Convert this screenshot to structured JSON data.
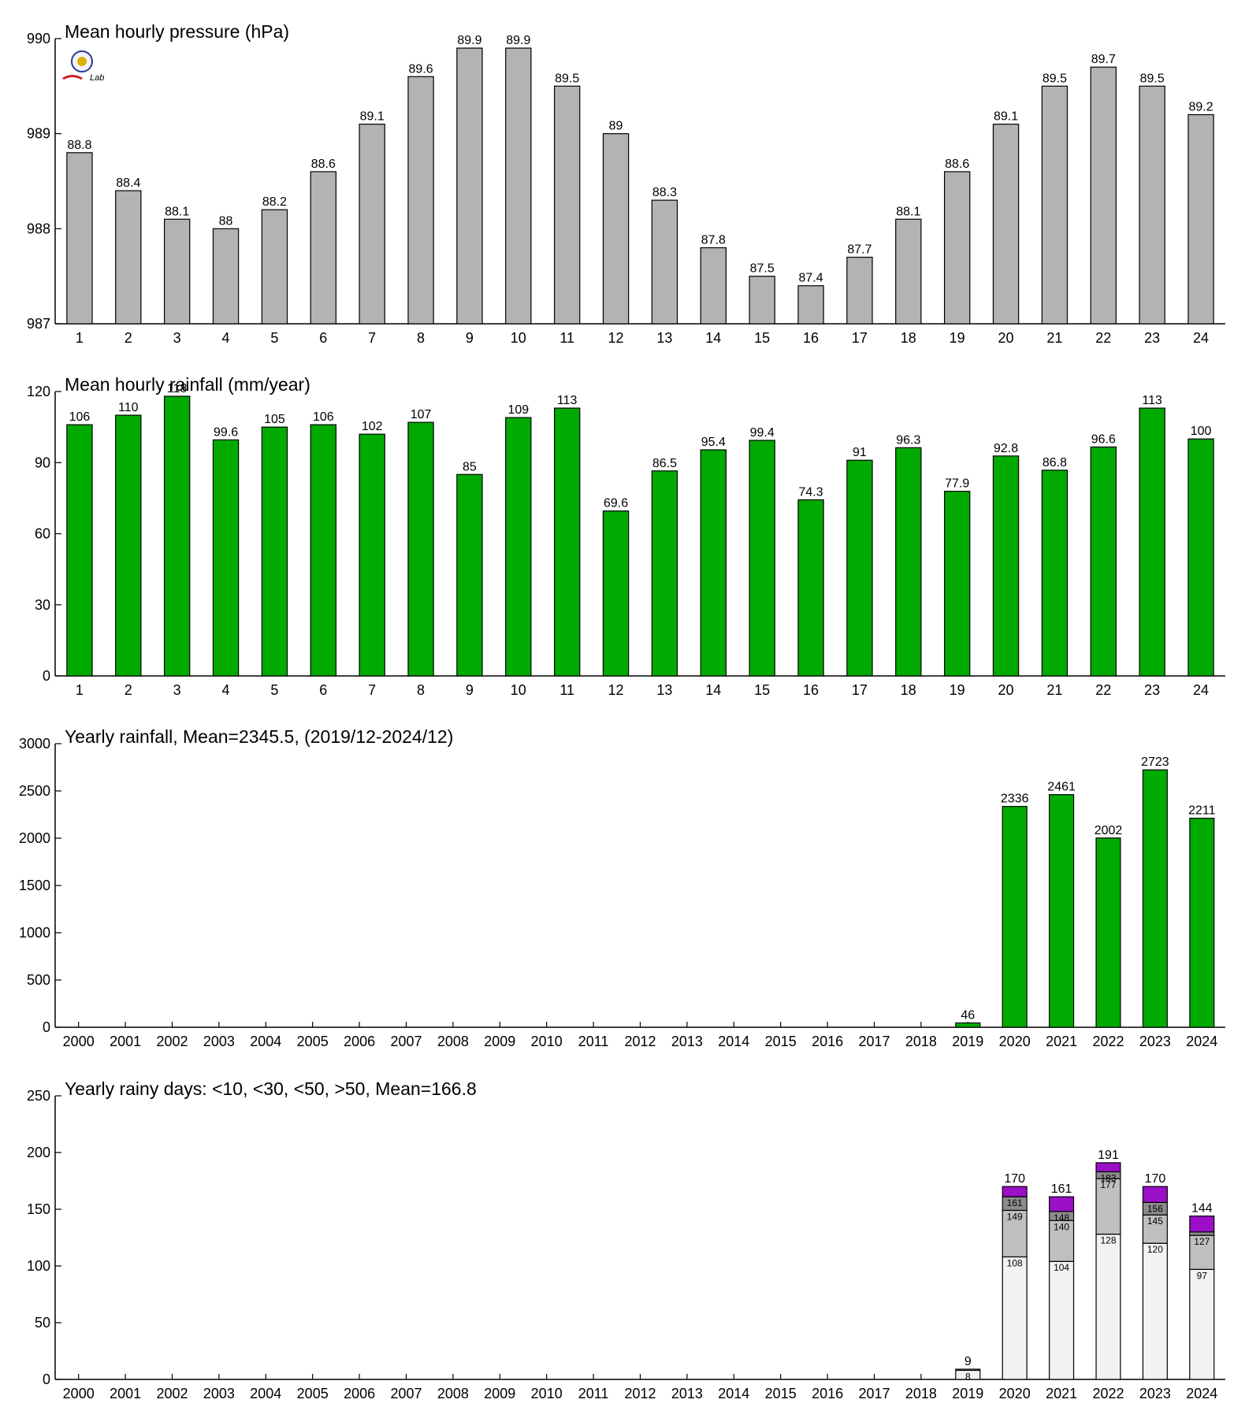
{
  "colors": {
    "pressure_bar": "#b3b3b3",
    "rain_bar": "#00aa00",
    "days_lt10": "#f2f2f2",
    "days_lt30": "#bfbfbf",
    "days_lt50": "#8c8c8c",
    "days_gt50": "#9b0fc6",
    "axis": "#000000"
  },
  "logo": {
    "icon": "station-seal-logo",
    "text": "Lab"
  },
  "chart_data": [
    {
      "type": "bar",
      "title": "Mean hourly pressure (hPa)",
      "categories": [
        "1",
        "2",
        "3",
        "4",
        "5",
        "6",
        "7",
        "8",
        "9",
        "10",
        "11",
        "12",
        "13",
        "14",
        "15",
        "16",
        "17",
        "18",
        "19",
        "20",
        "21",
        "22",
        "23",
        "24"
      ],
      "values": [
        988.8,
        988.4,
        988.1,
        988,
        988.2,
        988.6,
        989.1,
        989.6,
        989.9,
        989.9,
        989.5,
        989,
        988.3,
        987.8,
        987.5,
        987.4,
        987.7,
        988.1,
        988.6,
        989.1,
        989.5,
        989.7,
        989.5,
        989.2
      ],
      "labels": [
        "88.8",
        "88.4",
        "88.1",
        "88",
        "88.2",
        "88.6",
        "89.1",
        "89.6",
        "89.9",
        "89.9",
        "89.5",
        "89",
        "88.3",
        "87.8",
        "87.5",
        "87.4",
        "87.7",
        "88.1",
        "88.6",
        "89.1",
        "89.5",
        "89.7",
        "89.5",
        "89.2"
      ],
      "ylim": [
        987,
        990
      ],
      "yticks": [
        987,
        988,
        989,
        990
      ],
      "grid": false,
      "color": "#b3b3b3"
    },
    {
      "type": "bar",
      "title": "Mean hourly rainfall (mm/year)",
      "categories": [
        "1",
        "2",
        "3",
        "4",
        "5",
        "6",
        "7",
        "8",
        "9",
        "10",
        "11",
        "12",
        "13",
        "14",
        "15",
        "16",
        "17",
        "18",
        "19",
        "20",
        "21",
        "22",
        "23",
        "24"
      ],
      "values": [
        106,
        110,
        118,
        99.6,
        105,
        106,
        102,
        107,
        85,
        109,
        113,
        69.6,
        86.5,
        95.4,
        99.4,
        74.3,
        91,
        96.3,
        77.9,
        92.8,
        86.8,
        96.6,
        113,
        100
      ],
      "labels": [
        "106",
        "110",
        "118",
        "99.6",
        "105",
        "106",
        "102",
        "107",
        "85",
        "109",
        "113",
        "69.6",
        "86.5",
        "95.4",
        "99.4",
        "74.3",
        "91",
        "96.3",
        "77.9",
        "92.8",
        "86.8",
        "96.6",
        "113",
        "100"
      ],
      "ylim": [
        0,
        120
      ],
      "yticks": [
        0,
        30,
        60,
        90,
        120
      ],
      "grid": false,
      "color": "#00aa00"
    },
    {
      "type": "bar",
      "title": "Yearly rainfall, Mean=2345.5, (2019/12-2024/12)",
      "categories": [
        "2000",
        "2001",
        "2002",
        "2003",
        "2004",
        "2005",
        "2006",
        "2007",
        "2008",
        "2009",
        "2010",
        "2011",
        "2012",
        "2013",
        "2014",
        "2015",
        "2016",
        "2017",
        "2018",
        "2019",
        "2020",
        "2021",
        "2022",
        "2023",
        "2024"
      ],
      "values": [
        null,
        null,
        null,
        null,
        null,
        null,
        null,
        null,
        null,
        null,
        null,
        null,
        null,
        null,
        null,
        null,
        null,
        null,
        null,
        46,
        2336,
        2461,
        2002,
        2723,
        2211
      ],
      "labels": [
        null,
        null,
        null,
        null,
        null,
        null,
        null,
        null,
        null,
        null,
        null,
        null,
        null,
        null,
        null,
        null,
        null,
        null,
        null,
        "46",
        "2336",
        "2461",
        "2002",
        "2723",
        "2211"
      ],
      "ylim": [
        0,
        3000
      ],
      "yticks": [
        0,
        500,
        1000,
        1500,
        2000,
        2500,
        3000
      ],
      "grid": false,
      "color": "#00aa00"
    },
    {
      "type": "bar",
      "stacked": true,
      "title": "Yearly rainy days: <10, <30, <50, >50, Mean=166.8",
      "categories": [
        "2000",
        "2001",
        "2002",
        "2003",
        "2004",
        "2005",
        "2006",
        "2007",
        "2008",
        "2009",
        "2010",
        "2011",
        "2012",
        "2013",
        "2014",
        "2015",
        "2016",
        "2017",
        "2018",
        "2019",
        "2020",
        "2021",
        "2022",
        "2023",
        "2024"
      ],
      "cumulative": {
        "lt10": [
          null,
          null,
          null,
          null,
          null,
          null,
          null,
          null,
          null,
          null,
          null,
          null,
          null,
          null,
          null,
          null,
          null,
          null,
          null,
          8,
          108,
          104,
          128,
          120,
          97
        ],
        "lt30": [
          null,
          null,
          null,
          null,
          null,
          null,
          null,
          null,
          null,
          null,
          null,
          null,
          null,
          null,
          null,
          null,
          null,
          null,
          null,
          9,
          149,
          140,
          177,
          145,
          127
        ],
        "lt50": [
          null,
          null,
          null,
          null,
          null,
          null,
          null,
          null,
          null,
          null,
          null,
          null,
          null,
          null,
          null,
          null,
          null,
          null,
          null,
          9,
          161,
          148,
          183,
          156,
          130
        ],
        "total": [
          null,
          null,
          null,
          null,
          null,
          null,
          null,
          null,
          null,
          null,
          null,
          null,
          null,
          null,
          null,
          null,
          null,
          null,
          null,
          9,
          170,
          161,
          191,
          170,
          144
        ]
      },
      "segment_labels": {
        "lt10": [
          null,
          null,
          null,
          null,
          null,
          null,
          null,
          null,
          null,
          null,
          null,
          null,
          null,
          null,
          null,
          null,
          null,
          null,
          null,
          "8",
          "108",
          "104",
          "128",
          "120",
          "97"
        ],
        "lt30": [
          null,
          null,
          null,
          null,
          null,
          null,
          null,
          null,
          null,
          null,
          null,
          null,
          null,
          null,
          null,
          null,
          null,
          null,
          null,
          null,
          "149",
          "140",
          "177",
          "145",
          "127"
        ],
        "lt50": [
          null,
          null,
          null,
          null,
          null,
          null,
          null,
          null,
          null,
          null,
          null,
          null,
          null,
          null,
          null,
          null,
          null,
          null,
          null,
          null,
          "161",
          "148",
          "183",
          "156",
          null
        ]
      },
      "total_labels": [
        null,
        null,
        null,
        null,
        null,
        null,
        null,
        null,
        null,
        null,
        null,
        null,
        null,
        null,
        null,
        null,
        null,
        null,
        null,
        "9",
        "170",
        "161",
        "191",
        "170",
        "144"
      ],
      "ylim": [
        0,
        250
      ],
      "yticks": [
        0,
        50,
        100,
        150,
        200,
        250
      ],
      "grid": false
    }
  ]
}
